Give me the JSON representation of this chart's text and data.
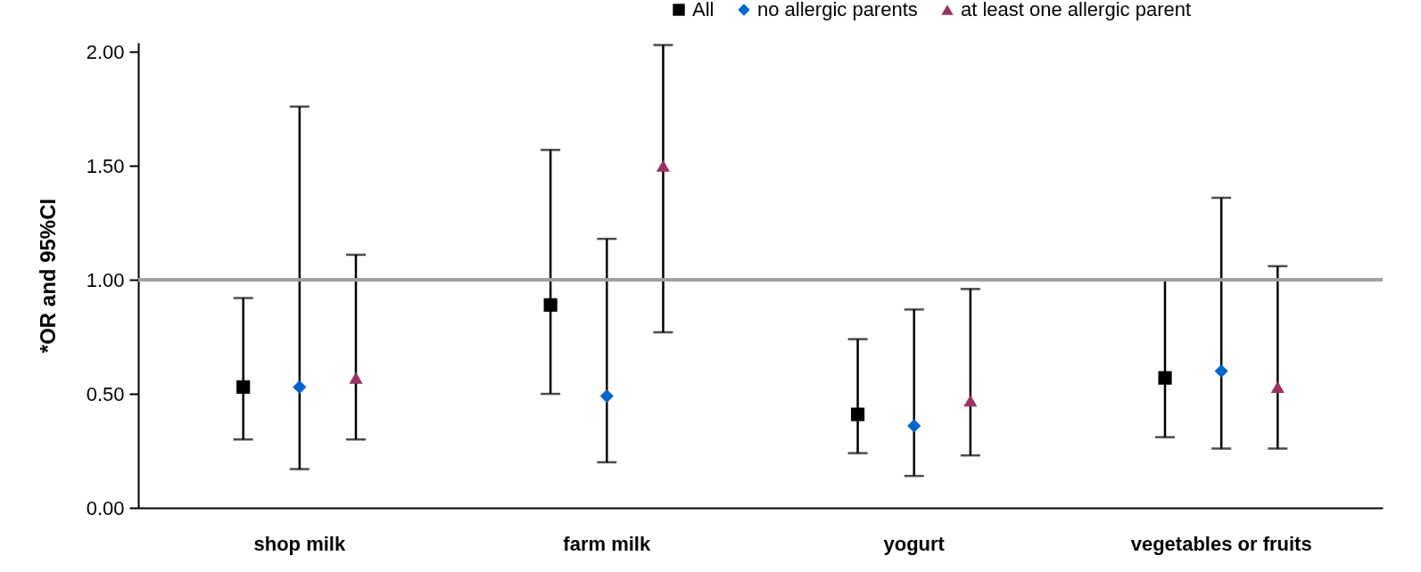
{
  "chart_data": {
    "type": "scatter",
    "ylabel": "*OR and 95%CI",
    "categories": [
      "shop milk",
      "farm milk",
      "yogurt",
      "vegetables or fruits"
    ],
    "series": [
      {
        "name": "All",
        "color": "#000000",
        "marker": "square",
        "values": [
          0.53,
          0.89,
          0.41,
          0.57
        ],
        "errors": [
          [
            0.3,
            0.92
          ],
          [
            0.5,
            1.57
          ],
          [
            0.24,
            0.74
          ],
          [
            0.31,
            1.0
          ]
        ]
      },
      {
        "name": "no allergic parents",
        "color": "#0066cc",
        "marker": "diamond",
        "values": [
          0.53,
          0.49,
          0.36,
          0.6
        ],
        "errors": [
          [
            0.17,
            1.76
          ],
          [
            0.2,
            1.18
          ],
          [
            0.14,
            0.87
          ],
          [
            0.26,
            1.36
          ]
        ]
      },
      {
        "name": "at least one allergic parent",
        "color": "#993366",
        "marker": "triangle",
        "values": [
          0.57,
          1.5,
          0.47,
          0.53
        ],
        "errors": [
          [
            0.3,
            1.11
          ],
          [
            0.77,
            2.03
          ],
          [
            0.23,
            0.96
          ],
          [
            0.26,
            1.06
          ]
        ]
      }
    ],
    "ylim": [
      0,
      2.04
    ],
    "yticks": [
      {
        "value": 0,
        "label": "0.00"
      },
      {
        "value": 0.5,
        "label": "0.50"
      },
      {
        "value": 1,
        "label": "1.00"
      },
      {
        "value": 1.5,
        "label": "1.50"
      },
      {
        "value": 2,
        "label": "2.00"
      }
    ],
    "ref_lines": [
      {
        "axis": "y",
        "value": 1,
        "color": "#a0a0a0"
      }
    ],
    "grid": false,
    "legend": "top right"
  }
}
